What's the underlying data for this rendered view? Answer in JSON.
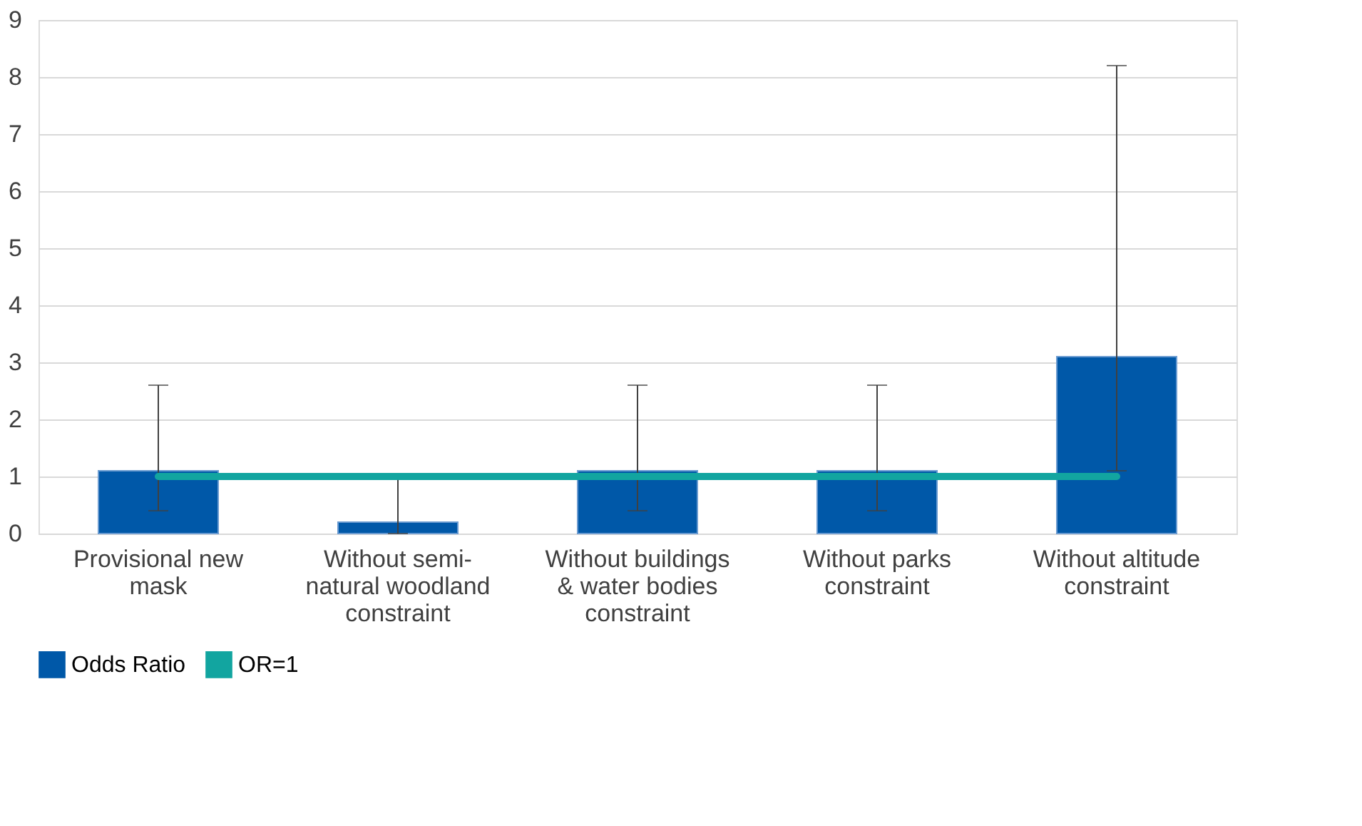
{
  "chart_data": {
    "type": "bar",
    "categories": [
      "Provisional new mask",
      "Without semi-natural woodland constraint",
      "Without buildings & water bodies constraint",
      "Without parks constraint",
      "Without altitude constraint"
    ],
    "series": [
      {
        "name": "Odds Ratio",
        "color": "#0058a8",
        "values": [
          1.1,
          0.2,
          1.1,
          1.1,
          3.1
        ],
        "errors": [
          [
            0.4,
            2.6
          ],
          [
            0,
            1.0
          ],
          [
            0.4,
            2.6
          ],
          [
            0.4,
            2.6
          ],
          [
            1.1,
            8.2
          ]
        ]
      },
      {
        "name": "OR=1",
        "type": "line",
        "color": "#12a5a0",
        "values": [
          1,
          1,
          1,
          1,
          1
        ]
      }
    ],
    "ylim": [
      0,
      9
    ],
    "yticks": [
      0,
      1,
      2,
      3,
      4,
      5,
      6,
      7,
      8,
      9
    ],
    "grid": "y",
    "legend": "bottom"
  }
}
